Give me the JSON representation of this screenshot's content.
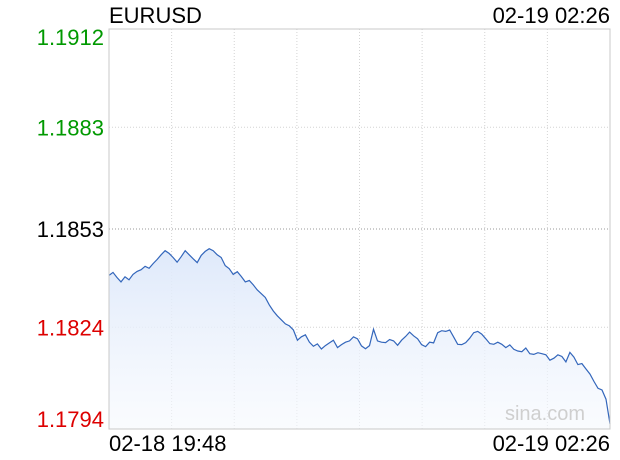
{
  "chart_data": {
    "type": "area",
    "title": "EURUSD",
    "timestamp": "02-19 02:26",
    "watermark": "sina.com",
    "x_start_label": "02-18 19:48",
    "x_end_label": "02-19 02:26",
    "ylim": [
      1.1794,
      1.1912
    ],
    "y_ticks": [
      {
        "label": "1.1912",
        "value": 1.1912,
        "color": "#009900"
      },
      {
        "label": "1.1883",
        "value": 1.1883,
        "color": "#009900"
      },
      {
        "label": "1.1853",
        "value": 1.1853,
        "color": "#000000"
      },
      {
        "label": "1.1824",
        "value": 1.1824,
        "color": "#dd0000"
      },
      {
        "label": "1.1794",
        "value": 1.1794,
        "color": "#dd0000"
      }
    ],
    "reference_value": 1.1853,
    "grid": true,
    "line_color": "#3366bb",
    "series": [
      {
        "values": [
          1.18393,
          1.18402,
          1.18387,
          1.18374,
          1.18389,
          1.1838,
          1.18396,
          1.18405,
          1.1841,
          1.1842,
          1.18414,
          1.18428,
          1.1844,
          1.18454,
          1.18466,
          1.18458,
          1.18446,
          1.18432,
          1.18448,
          1.18466,
          1.18454,
          1.18442,
          1.18431,
          1.18452,
          1.18464,
          1.18472,
          1.18466,
          1.18454,
          1.18446,
          1.18422,
          1.18413,
          1.18396,
          1.18404,
          1.1839,
          1.18374,
          1.18378,
          1.18365,
          1.1835,
          1.18339,
          1.18328,
          1.18306,
          1.18288,
          1.18274,
          1.18262,
          1.1825,
          1.18244,
          1.18232,
          1.18202,
          1.18212,
          1.18218,
          1.18196,
          1.18184,
          1.18191,
          1.18176,
          1.18186,
          1.18194,
          1.18202,
          1.1818,
          1.18189,
          1.18196,
          1.182,
          1.18212,
          1.18206,
          1.18185,
          1.18177,
          1.18186,
          1.18234,
          1.182,
          1.18196,
          1.18195,
          1.18204,
          1.182,
          1.18187,
          1.18202,
          1.18213,
          1.18226,
          1.18215,
          1.18206,
          1.18189,
          1.18183,
          1.18196,
          1.18194,
          1.18224,
          1.1823,
          1.18228,
          1.18232,
          1.18211,
          1.1819,
          1.18189,
          1.18195,
          1.18208,
          1.18224,
          1.18228,
          1.1822,
          1.18206,
          1.18192,
          1.1819,
          1.18196,
          1.1819,
          1.1818,
          1.18188,
          1.18175,
          1.1817,
          1.18168,
          1.18179,
          1.18162,
          1.1816,
          1.18165,
          1.18162,
          1.18159,
          1.18143,
          1.18149,
          1.18159,
          1.18154,
          1.18138,
          1.18166,
          1.18152,
          1.1813,
          1.18133,
          1.18117,
          1.18102,
          1.1808,
          1.1806,
          1.18055,
          1.18028,
          1.17955
        ]
      }
    ]
  }
}
